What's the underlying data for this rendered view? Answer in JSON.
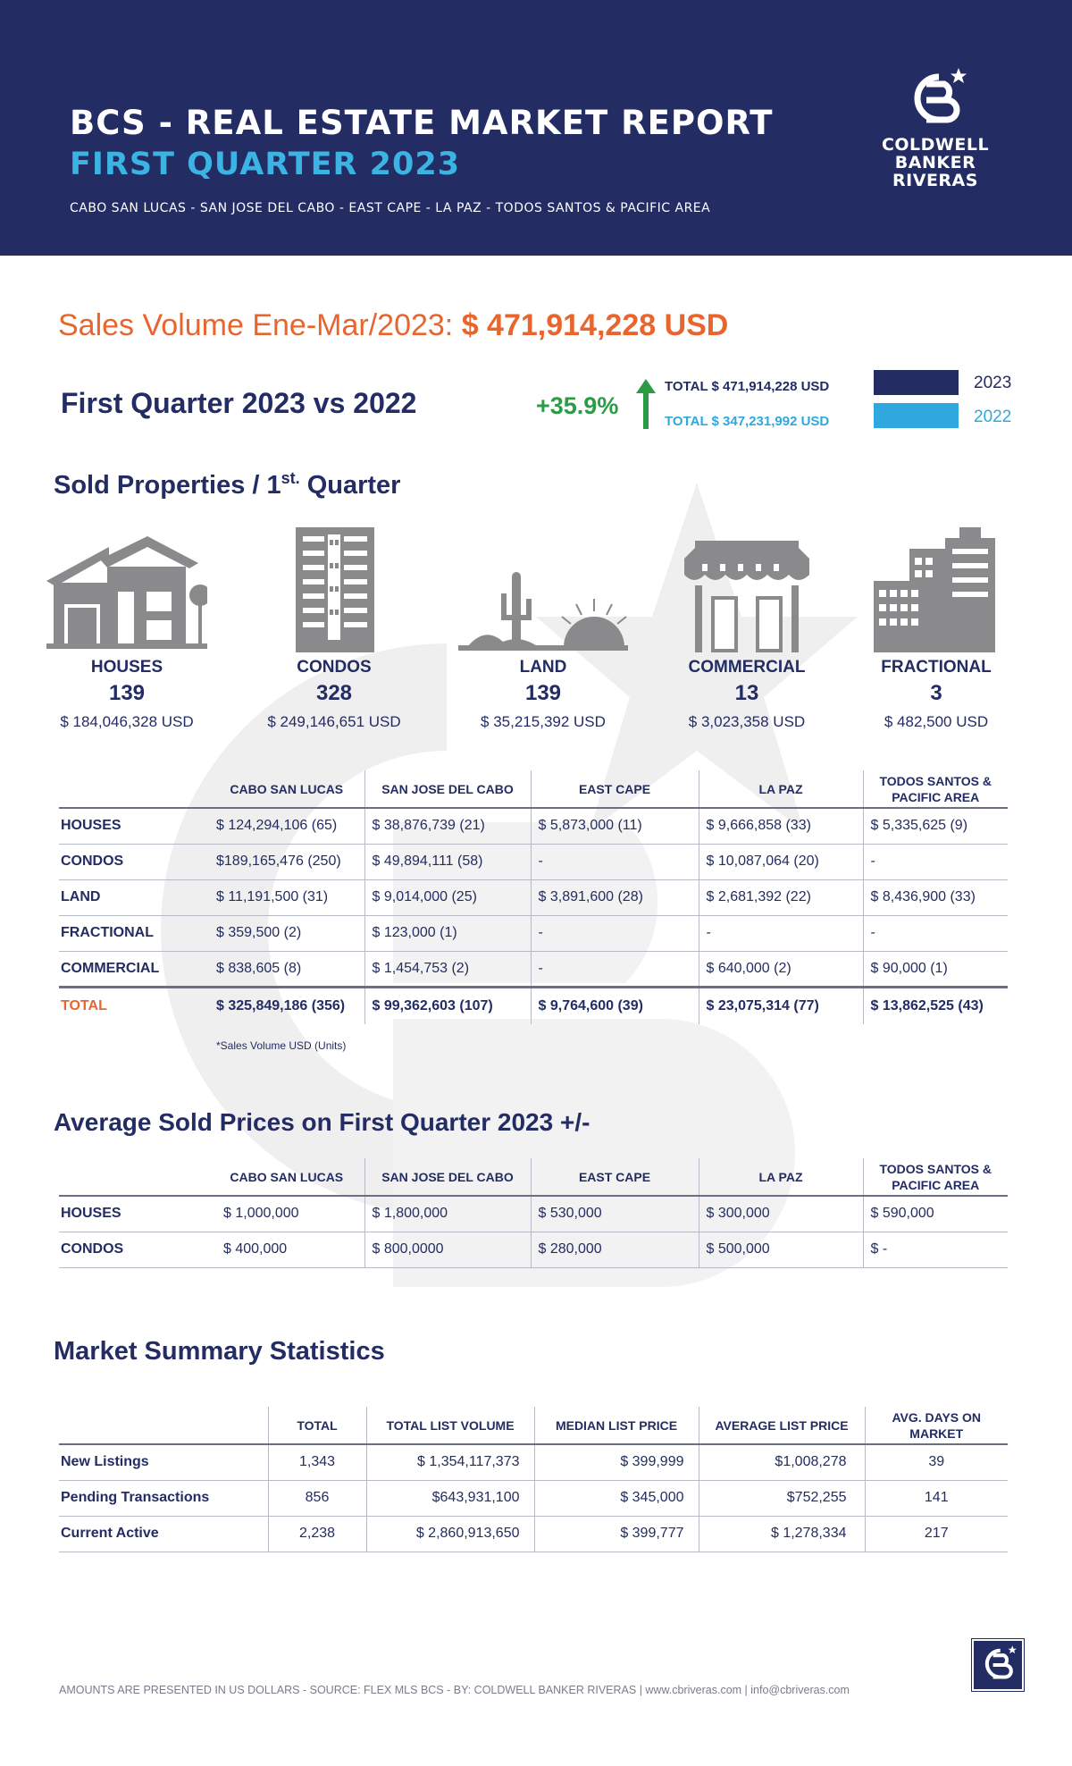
{
  "header": {
    "title": "BCS - REAL ESTATE MARKET REPORT",
    "subtitle": "FIRST QUARTER 2023",
    "areas": "CABO SAN LUCAS - SAN JOSE DEL CABO - EAST CAPE - LA PAZ - TODOS SANTOS & PACIFIC AREA",
    "logo_lines": [
      "COLDWELL",
      "BANKER",
      "RIVERAS"
    ]
  },
  "sales_volume": {
    "label": "Sales Volume Ene-Mar/2023:",
    "value": "$ 471,914,228  USD"
  },
  "comparison": {
    "title": "First Quarter 2023 vs 2022",
    "change": "+35.9%",
    "total_2023": "TOTAL $ 471,914,228 USD",
    "total_2022": "TOTAL $ 347,231,992 USD",
    "legend_2023": "2023",
    "legend_2022": "2022",
    "color_2023": "#232c63",
    "color_2022": "#2fa8df",
    "change_color": "#2c9b46"
  },
  "sold_properties": {
    "title_main": "Sold Properties / 1",
    "title_sup": "st.",
    "title_end": " Quarter",
    "types": [
      {
        "name": "HOUSES",
        "count": "139",
        "volume": "$ 184,046,328 USD",
        "icon": "house-icon"
      },
      {
        "name": "CONDOS",
        "count": "328",
        "volume": "$ 249,146,651 USD",
        "icon": "condo-building-icon"
      },
      {
        "name": "LAND",
        "count": "139",
        "volume": "$  35,215,392 USD",
        "icon": "land-cactus-icon"
      },
      {
        "name": "COMMERCIAL",
        "count": "13",
        "volume": "$ 3,023,358 USD",
        "icon": "storefront-icon"
      },
      {
        "name": "FRACTIONAL",
        "count": "3",
        "volume": "$ 482,500 USD",
        "icon": "office-buildings-icon"
      }
    ]
  },
  "sales_table": {
    "columns": [
      "CABO SAN LUCAS",
      "SAN JOSE DEL CABO",
      "EAST CAPE",
      "LA PAZ",
      "TODOS SANTOS & PACIFIC AREA"
    ],
    "rows": [
      {
        "label": "HOUSES",
        "cells": [
          "$ 124,294,106 (65)",
          "$ 38,876,739 (21)",
          "$ 5,873,000 (11)",
          "$ 9,666,858 (33)",
          "$ 5,335,625 (9)"
        ]
      },
      {
        "label": "CONDOS",
        "cells": [
          "$189,165,476 (250)",
          "$ 49,894,111 (58)",
          "-",
          "$ 10,087,064 (20)",
          "-"
        ]
      },
      {
        "label": "LAND",
        "cells": [
          "$ 11,191,500 (31)",
          "$ 9,014,000 (25)",
          "$ 3,891,600 (28)",
          "$ 2,681,392 (22)",
          "$ 8,436,900 (33)"
        ]
      },
      {
        "label": "FRACTIONAL",
        "cells": [
          "$ 359,500 (2)",
          "$ 123,000 (1)",
          "-",
          "-",
          "-"
        ]
      },
      {
        "label": "COMMERCIAL",
        "cells": [
          "$ 838,605 (8)",
          "$ 1,454,753 (2)",
          "-",
          "$ 640,000 (2)",
          "$ 90,000 (1)"
        ]
      }
    ],
    "total": {
      "label": "TOTAL",
      "cells": [
        "$ 325,849,186  (356)",
        "$ 99,362,603  (107)",
        "$ 9,764,600  (39)",
        "$ 23,075,314  (77)",
        "$ 13,862,525 (43)"
      ]
    },
    "note": "*Sales Volume USD  (Units)"
  },
  "avg_prices": {
    "title": "Average Sold Prices on First Quarter 2023 +/-",
    "columns": [
      "CABO SAN LUCAS",
      "SAN JOSE DEL CABO",
      "EAST CAPE",
      "LA PAZ",
      "TODOS SANTOS & PACIFIC AREA"
    ],
    "rows": [
      {
        "label": "HOUSES",
        "cells": [
          "$ 1,000,000",
          "$ 1,800,000",
          "$ 530,000",
          "$ 300,000",
          "$ 590,000"
        ]
      },
      {
        "label": "CONDOS",
        "cells": [
          "$ 400,000",
          "$ 800,0000",
          "$ 280,000",
          "$ 500,000",
          "$ -"
        ]
      }
    ]
  },
  "market_summary": {
    "title": "Market Summary Statistics",
    "columns": [
      "TOTAL",
      "TOTAL LIST VOLUME",
      "MEDIAN LIST PRICE",
      "AVERAGE LIST PRICE",
      "AVG. DAYS ON MARKET"
    ],
    "rows": [
      {
        "label": "New Listings",
        "cells": [
          "1,343",
          "$ 1,354,117,373",
          "$ 399,999",
          "$1,008,278",
          "39"
        ]
      },
      {
        "label": "Pending Transactions",
        "cells": [
          "856",
          "$643,931,100",
          "$ 345,000",
          "$752,255",
          "141"
        ]
      },
      {
        "label": "Current Active",
        "cells": [
          "2,238",
          "$ 2,860,913,650",
          "$ 399,777",
          "$ 1,278,334",
          "217"
        ]
      }
    ]
  },
  "footer": {
    "text": "AMOUNTS ARE PRESENTED IN US DOLLARS - SOURCE: FLEX MLS BCS - BY: COLDWELL BANKER RIVERAS  |  www.cbriveras.com  |  info@cbriveras.com"
  }
}
